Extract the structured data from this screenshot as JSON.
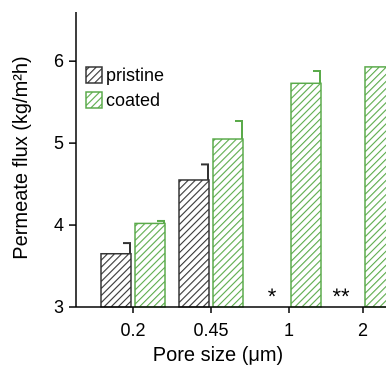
{
  "chart_data": {
    "type": "bar",
    "categories": [
      "0.2",
      "0.45",
      "1",
      "2"
    ],
    "xlabel": "Pore size (μm)",
    "ylabel": "Permeate flux (kg/m²h)",
    "ylim": [
      3,
      6.6
    ],
    "yticks": [
      "3",
      "4",
      "5",
      "6"
    ],
    "grid": false,
    "legend_position": "top-left",
    "series": [
      {
        "name": "pristine",
        "color": "#333333",
        "values": [
          3.65,
          4.55,
          null,
          null
        ],
        "errors": [
          0.13,
          0.19,
          null,
          null
        ]
      },
      {
        "name": "coated",
        "color": "#5aaa4a",
        "values": [
          4.02,
          5.05,
          5.73,
          5.93
        ],
        "errors": [
          0.03,
          0.22,
          0.15,
          0.02
        ]
      }
    ],
    "annotations": [
      {
        "category": "1",
        "text": "*"
      },
      {
        "category": "2",
        "text": "**"
      }
    ]
  }
}
